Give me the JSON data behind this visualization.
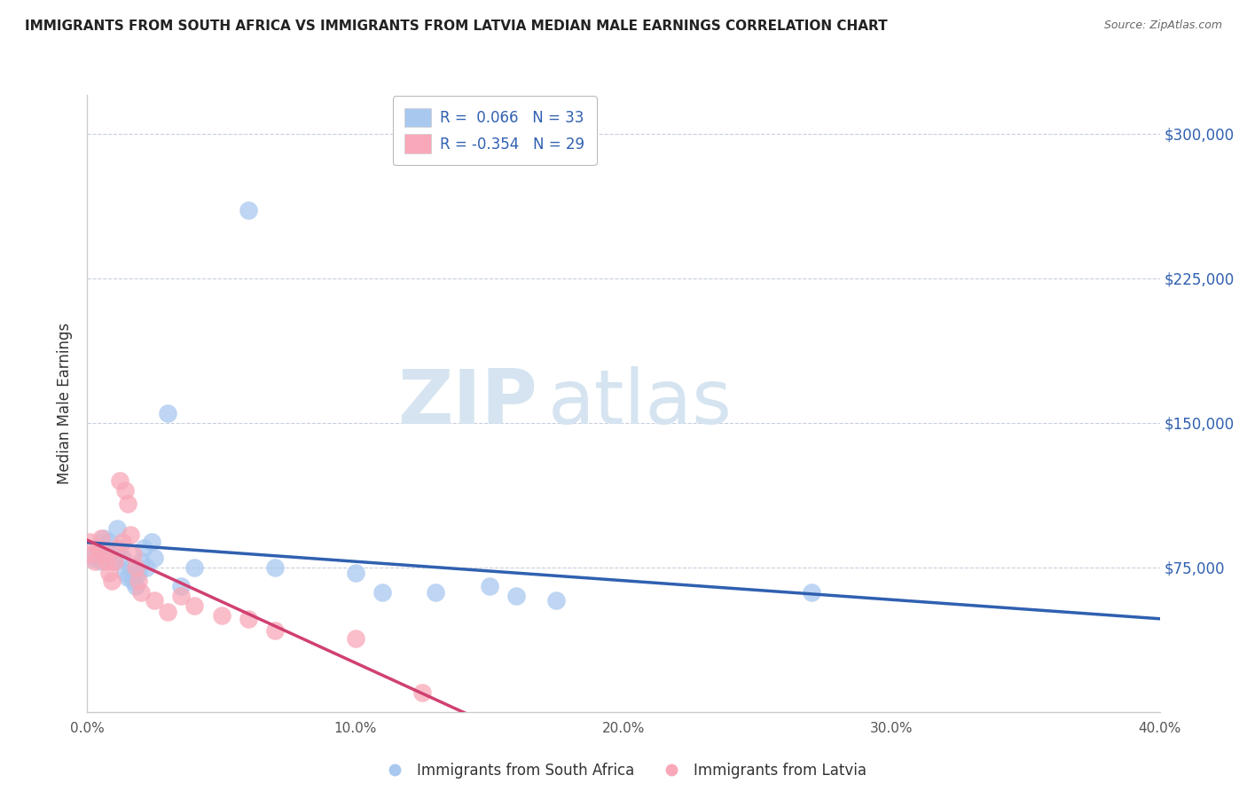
{
  "title": "IMMIGRANTS FROM SOUTH AFRICA VS IMMIGRANTS FROM LATVIA MEDIAN MALE EARNINGS CORRELATION CHART",
  "source": "Source: ZipAtlas.com",
  "ylabel": "Median Male Earnings",
  "xlim": [
    0.0,
    0.4
  ],
  "ylim": [
    0,
    320000
  ],
  "yticks": [
    0,
    75000,
    150000,
    225000,
    300000
  ],
  "ytick_labels": [
    "",
    "$75,000",
    "$150,000",
    "$225,000",
    "$300,000"
  ],
  "xtick_labels": [
    "0.0%",
    "10.0%",
    "20.0%",
    "30.0%",
    "40.0%"
  ],
  "xticks": [
    0.0,
    0.1,
    0.2,
    0.3,
    0.4
  ],
  "r_blue": 0.066,
  "n_blue": 33,
  "r_pink": -0.354,
  "n_pink": 29,
  "color_blue": "#a8c8f0",
  "color_pink": "#f8a8b8",
  "line_blue": "#3060b0",
  "line_pink": "#d04070",
  "line_dash": "#b8c8d8",
  "background": "#ffffff",
  "watermark_zip": "ZIP",
  "watermark_atlas": "atlas",
  "legend_label_blue": "Immigrants from South Africa",
  "legend_label_pink": "Immigrants from Latvia",
  "blue_scatter_x": [
    0.002,
    0.004,
    0.005,
    0.006,
    0.008,
    0.009,
    0.01,
    0.011,
    0.012,
    0.013,
    0.014,
    0.015,
    0.016,
    0.017,
    0.018,
    0.019,
    0.02,
    0.021,
    0.022,
    0.024,
    0.025,
    0.03,
    0.035,
    0.04,
    0.06,
    0.07,
    0.1,
    0.11,
    0.13,
    0.15,
    0.16,
    0.175,
    0.27
  ],
  "blue_scatter_y": [
    80000,
    85000,
    78000,
    90000,
    88000,
    82000,
    78000,
    95000,
    85000,
    80000,
    72000,
    70000,
    75000,
    68000,
    65000,
    72000,
    78000,
    85000,
    75000,
    88000,
    80000,
    155000,
    65000,
    75000,
    260000,
    75000,
    72000,
    62000,
    62000,
    65000,
    60000,
    58000,
    62000
  ],
  "pink_scatter_x": [
    0.001,
    0.002,
    0.003,
    0.004,
    0.005,
    0.006,
    0.007,
    0.008,
    0.009,
    0.01,
    0.011,
    0.012,
    0.013,
    0.014,
    0.015,
    0.016,
    0.017,
    0.018,
    0.019,
    0.02,
    0.025,
    0.03,
    0.035,
    0.04,
    0.05,
    0.06,
    0.07,
    0.1,
    0.125
  ],
  "pink_scatter_y": [
    88000,
    82000,
    78000,
    85000,
    90000,
    82000,
    78000,
    72000,
    68000,
    78000,
    85000,
    120000,
    88000,
    115000,
    108000,
    92000,
    82000,
    75000,
    68000,
    62000,
    58000,
    52000,
    60000,
    55000,
    50000,
    48000,
    42000,
    38000,
    10000
  ]
}
